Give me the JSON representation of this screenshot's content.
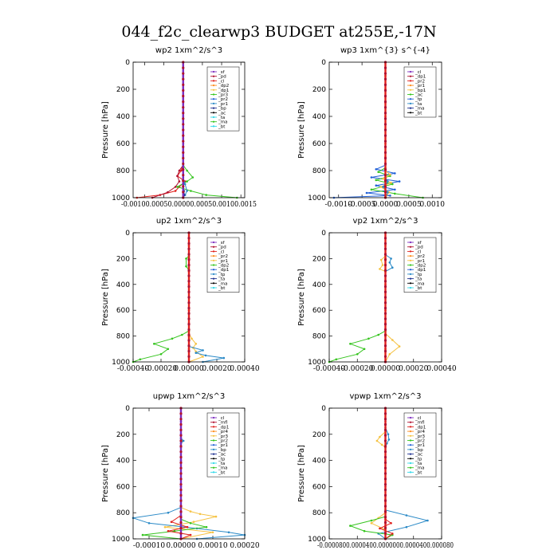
{
  "title": "044_f2c_clearwp3  BUDGET at255E,-17N",
  "colors": {
    "purple": "#7b2bbf",
    "red": "#e0201c",
    "orange": "#ff8c1a",
    "yellow": "#f5c242",
    "green": "#35c41e",
    "blue": "#1f5fd6",
    "teal": "#2b8ac7",
    "black": "#000000",
    "cyan": "#2fd8e8",
    "navy": "#1c2f8f",
    "darkred": "#b01030"
  },
  "chart_data": [
    {
      "type": "line",
      "title": "wp2   1xm^2/s^3",
      "ylabel": "Pressure [hPa]",
      "ylim": [
        1000,
        0
      ],
      "yticks": [
        0,
        200,
        400,
        600,
        800,
        1000
      ],
      "xlim": [
        -0.0013,
        0.0016
      ],
      "xticks": [
        -0.001,
        -0.0005,
        0.0,
        0.0005,
        0.001,
        0.0015
      ],
      "xticklabels": "-0.00100.00050.00000.00050.00100.0015",
      "legend_position": "top-right",
      "legend": [
        "_sf",
        "_pd",
        "_cl",
        "_dp2",
        "_dp1",
        "_pr3",
        "_pr2",
        "_pr1",
        "_bp",
        "_ac",
        "_ta",
        "_ma",
        "_bt"
      ],
      "series": [
        {
          "key": "_sf",
          "color": "purple",
          "x": [
            0,
            0,
            0,
            0,
            0,
            0,
            0,
            0,
            0,
            0,
            0
          ],
          "y": [
            0,
            100,
            200,
            300,
            400,
            500,
            600,
            700,
            800,
            900,
            1000
          ]
        },
        {
          "key": "_cl",
          "color": "red",
          "x": [
            0,
            0,
            0,
            -5e-05,
            -0.00015,
            5e-05,
            -0.0001,
            -0.0002,
            -0.0006,
            -0.0012
          ],
          "y": [
            0,
            600,
            750,
            800,
            840,
            880,
            920,
            950,
            980,
            1000
          ]
        },
        {
          "key": "_dp2",
          "color": "darkred",
          "x": [
            0,
            0,
            -0.0001,
            -0.00015,
            -0.0001,
            -0.0002,
            -0.0004,
            -0.0008
          ],
          "y": [
            0,
            760,
            800,
            840,
            880,
            920,
            960,
            1000
          ]
        },
        {
          "key": "_pr1",
          "color": "green",
          "x": [
            0,
            0,
            0.0001,
            0.00025,
            0.0001,
            -0.00015,
            0.0002,
            0.0006,
            0.0014
          ],
          "y": [
            0,
            760,
            800,
            850,
            880,
            920,
            950,
            980,
            1000
          ]
        },
        {
          "key": "_bp",
          "color": "teal",
          "x": [
            0,
            0,
            5e-05,
            0.0001,
            5e-05,
            0
          ],
          "y": [
            0,
            850,
            900,
            950,
            980,
            1000
          ]
        },
        {
          "key": "_ta",
          "color": "navy",
          "x": [
            0,
            0,
            2e-05,
            3e-05,
            0
          ],
          "y": [
            0,
            900,
            950,
            980,
            1000
          ]
        }
      ]
    },
    {
      "type": "line",
      "title": "wp3   1xm^{3} s^{-4}",
      "ylabel": "Pressure [hPa]",
      "ylim": [
        1000,
        0
      ],
      "yticks": [
        0,
        200,
        400,
        600,
        800,
        1000
      ],
      "xlim": [
        -0.0012,
        0.0012
      ],
      "xticks": [
        -0.001,
        -0.0005,
        0.0,
        0.0005,
        0.001
      ],
      "xticklabels": [
        "-0.0010",
        "-0.0005",
        "0.0000",
        "0.0005",
        "0.0010"
      ],
      "legend_position": "top-right",
      "legend": [
        "_cl",
        "_dp1",
        "_pr2",
        "_pr1",
        "_bp1",
        "_ac",
        "_tp",
        "_ta",
        "_ma",
        "_bt"
      ],
      "series": [
        {
          "key": "_cl",
          "color": "red",
          "x": [
            0,
            0,
            0,
            0,
            0,
            0,
            0,
            0,
            0,
            0,
            0
          ],
          "y": [
            0,
            100,
            200,
            300,
            400,
            500,
            600,
            700,
            800,
            900,
            1000
          ]
        },
        {
          "key": "_ta",
          "color": "blue",
          "x": [
            0,
            0,
            -0.0002,
            0.0002,
            -0.0003,
            0.0003,
            -0.0002,
            0.0002,
            -0.0004,
            0.0001,
            -0.0011
          ],
          "y": [
            0,
            760,
            790,
            820,
            850,
            880,
            910,
            940,
            965,
            985,
            1000
          ]
        },
        {
          "key": "_pr1",
          "color": "green",
          "x": [
            0,
            0,
            -0.00015,
            0.0001,
            -0.0002,
            0.00015,
            -0.0003,
            0.0002,
            0.0008
          ],
          "y": [
            0,
            780,
            810,
            840,
            870,
            900,
            940,
            970,
            1000
          ]
        },
        {
          "key": "_pr2",
          "color": "yellow",
          "x": [
            0,
            0,
            0.0001,
            -5e-05,
            0.00012,
            -0.0001,
            8e-05,
            0
          ],
          "y": [
            0,
            800,
            830,
            860,
            890,
            920,
            960,
            1000
          ]
        },
        {
          "key": "_ac",
          "color": "teal",
          "x": [
            0,
            0,
            5e-05,
            -5e-05,
            5e-05,
            0
          ],
          "y": [
            0,
            850,
            880,
            920,
            960,
            1000
          ]
        }
      ]
    },
    {
      "type": "line",
      "title": "up2   1xm^2/s^3",
      "ylabel": "Pressure [hPa]",
      "ylim": [
        1000,
        0
      ],
      "yticks": [
        0,
        200,
        400,
        600,
        800,
        1000
      ],
      "xlim": [
        -0.0004,
        0.0004
      ],
      "xticks": [
        -0.0004,
        -0.0002,
        0.0,
        0.0002,
        0.0004
      ],
      "xticklabels": [
        "-0.00040",
        "-0.00020",
        "0.00000",
        "0.00020",
        "0.00040"
      ],
      "legend_position": "top-right",
      "legend": [
        "_sf",
        "_pd",
        "_cl",
        "_pr2",
        "_pr1",
        "_dp2",
        "_dp1",
        "_tp",
        "_ta",
        "_ma",
        "_bt"
      ],
      "series": [
        {
          "key": "_cl",
          "color": "red",
          "x": [
            0,
            0,
            0,
            0,
            0,
            0,
            0,
            0,
            0,
            0,
            0
          ],
          "y": [
            0,
            100,
            200,
            300,
            400,
            500,
            600,
            700,
            800,
            900,
            1000
          ]
        },
        {
          "key": "_pr1",
          "color": "green",
          "x": [
            0,
            0,
            -2e-05,
            -2e-05,
            0,
            0,
            -5e-05,
            -0.00012,
            -0.00025,
            -0.00015,
            -0.0002,
            -0.00035,
            -0.0004
          ],
          "y": [
            0,
            180,
            200,
            260,
            290,
            760,
            790,
            820,
            860,
            900,
            940,
            980,
            1000
          ]
        },
        {
          "key": "_pr2",
          "color": "yellow",
          "x": [
            0,
            0,
            2e-05,
            5e-05,
            3e-05,
            5e-05,
            0.0001,
            0
          ],
          "y": [
            0,
            780,
            820,
            860,
            890,
            920,
            960,
            1000
          ]
        },
        {
          "key": "_tp",
          "color": "teal",
          "x": [
            0,
            0,
            0.0001,
            5e-05,
            0.00012,
            0.00025,
            0.0001
          ],
          "y": [
            0,
            880,
            910,
            930,
            950,
            970,
            1000
          ]
        }
      ]
    },
    {
      "type": "line",
      "title": "vp2   1xm^2/s^3",
      "ylabel": "Pressure [hPa]",
      "ylim": [
        1000,
        0
      ],
      "yticks": [
        0,
        200,
        400,
        600,
        800,
        1000
      ],
      "xlim": [
        -0.0004,
        0.0004
      ],
      "xticks": [
        -0.0004,
        -0.0002,
        0.0,
        0.0002,
        0.0004
      ],
      "xticklabels": [
        "-0.00040",
        "-0.00020",
        "0.00000",
        "0.00020",
        "0.00040"
      ],
      "legend_position": "top-right",
      "legend": [
        "_sf",
        "_pd",
        "_cl",
        "_pr2",
        "_pr1",
        "_dp2",
        "_dp1",
        "_tp",
        "_ta",
        "_ma",
        "_bt"
      ],
      "series": [
        {
          "key": "_cl",
          "color": "red",
          "x": [
            0,
            0,
            0,
            0,
            0,
            0,
            0,
            0,
            0,
            0,
            0
          ],
          "y": [
            0,
            100,
            200,
            300,
            400,
            500,
            600,
            700,
            800,
            900,
            1000
          ]
        },
        {
          "key": "_tp",
          "color": "teal",
          "x": [
            0,
            0,
            4e-05,
            3e-05,
            5e-05,
            0,
            0
          ],
          "y": [
            0,
            170,
            200,
            230,
            270,
            300,
            1000
          ]
        },
        {
          "key": "_pr2",
          "color": "yellow",
          "x": [
            0,
            0,
            -3e-05,
            -2e-05,
            -4e-05,
            0,
            0,
            5e-05,
            0.0001,
            3e-05,
            0
          ],
          "y": [
            0,
            180,
            210,
            250,
            280,
            300,
            780,
            830,
            880,
            940,
            1000
          ]
        },
        {
          "key": "_pr1",
          "color": "green",
          "x": [
            0,
            0,
            -5e-05,
            -0.00012,
            -0.00025,
            -0.00015,
            -0.0002,
            -0.00035,
            -0.0004
          ],
          "y": [
            0,
            760,
            790,
            820,
            860,
            900,
            940,
            980,
            1000
          ]
        }
      ]
    },
    {
      "type": "line",
      "title": "upwp   1xm^2/s^3",
      "ylabel": "Pressure [hPa]",
      "ylim": [
        1000,
        0
      ],
      "yticks": [
        0,
        200,
        400,
        600,
        800,
        1000
      ],
      "xlim": [
        -0.00015,
        0.0002
      ],
      "xticks": [
        -0.0001,
        0.0,
        0.0001,
        0.0002
      ],
      "xticklabels": [
        "-0.00010",
        "0.00000",
        "0.00010",
        "0.00020"
      ],
      "legend_position": "top-right",
      "legend": [
        "_cl",
        "_mfl",
        "_dp1",
        "_pr4",
        "_pr3",
        "_pr2",
        "_pr1",
        "_bp",
        "_ac",
        "_tp",
        "_ta",
        "_ma",
        "_bt"
      ],
      "series": [
        {
          "key": "_cl",
          "color": "purple",
          "x": [
            0,
            0,
            0,
            0,
            0,
            0,
            0,
            0,
            0,
            0,
            0
          ],
          "y": [
            0,
            100,
            200,
            300,
            400,
            500,
            600,
            700,
            800,
            900,
            1000
          ]
        },
        {
          "key": "_pr2",
          "color": "yellow",
          "x": [
            0,
            0,
            5e-06,
            0,
            0,
            3e-05,
            6e-05,
            0.00011,
            4e-05,
            -5e-05,
            0.0001,
            0
          ],
          "y": [
            0,
            230,
            250,
            270,
            760,
            790,
            810,
            830,
            870,
            910,
            950,
            1000
          ]
        },
        {
          "key": "_tp",
          "color": "teal",
          "x": [
            0,
            0,
            8e-06,
            0,
            0,
            -4e-05,
            -0.00015,
            -0.0001,
            5e-05,
            0.00015,
            0.0002,
            5e-05
          ],
          "y": [
            0,
            230,
            250,
            270,
            760,
            800,
            840,
            880,
            920,
            950,
            970,
            1000
          ]
        },
        {
          "key": "_pr1",
          "color": "green",
          "x": [
            0,
            0,
            3e-05,
            8e-05,
            -2e-05,
            -0.00012,
            0
          ],
          "y": [
            0,
            850,
            880,
            910,
            940,
            970,
            1000
          ]
        },
        {
          "key": "_dp1",
          "color": "red",
          "x": [
            0,
            0,
            -3e-05,
            2e-05,
            -4e-05,
            3e-05,
            0
          ],
          "y": [
            0,
            820,
            870,
            910,
            940,
            970,
            1000
          ]
        }
      ]
    },
    {
      "type": "line",
      "title": "vpwp   1xm^2/s^3",
      "ylabel": "Pressure [hPa]",
      "ylim": [
        1000,
        0
      ],
      "yticks": [
        0,
        200,
        400,
        600,
        800,
        1000
      ],
      "xlim": [
        -8e-05,
        8e-05
      ],
      "xticks": [
        -8e-05,
        -4e-05,
        0.0,
        4e-05,
        8e-05
      ],
      "xticklabels": "-0.0000800.0000400.0000000.0000400.000080",
      "legend_position": "top-right",
      "legend": [
        "_cl",
        "_mfl",
        "_dp1",
        "_pr4",
        "_pr3",
        "_pr2",
        "_pr1",
        "_bp",
        "_ac",
        "_tp",
        "_ta",
        "_ma",
        "_bt"
      ],
      "series": [
        {
          "key": "_cl",
          "color": "purple",
          "x": [
            0,
            0,
            0,
            0,
            0,
            0,
            0,
            0,
            0,
            0,
            0
          ],
          "y": [
            0,
            100,
            200,
            300,
            400,
            500,
            600,
            700,
            800,
            900,
            1000
          ]
        },
        {
          "key": "_tp",
          "color": "teal",
          "x": [
            0,
            0,
            4e-06,
            5e-06,
            2e-06,
            0,
            0,
            3e-05,
            6e-05,
            3e-05,
            -1e-05,
            0
          ],
          "y": [
            0,
            150,
            200,
            240,
            270,
            300,
            780,
            820,
            860,
            910,
            960,
            1000
          ]
        },
        {
          "key": "_pr2",
          "color": "yellow",
          "x": [
            0,
            0,
            -8e-06,
            -1.2e-05,
            -5e-06,
            0,
            0,
            -1e-05,
            -2e-05,
            0,
            0
          ],
          "y": [
            0,
            180,
            220,
            250,
            280,
            300,
            800,
            840,
            880,
            930,
            1000
          ]
        },
        {
          "key": "_pr1",
          "color": "green",
          "x": [
            0,
            0,
            -2e-05,
            -5e-05,
            -3e-05,
            1e-05,
            0
          ],
          "y": [
            0,
            830,
            860,
            900,
            940,
            970,
            1000
          ]
        },
        {
          "key": "_dp1",
          "color": "red",
          "x": [
            0,
            0,
            8e-06,
            -8e-06,
            1e-05,
            0
          ],
          "y": [
            0,
            850,
            880,
            920,
            960,
            1000
          ]
        }
      ]
    }
  ]
}
